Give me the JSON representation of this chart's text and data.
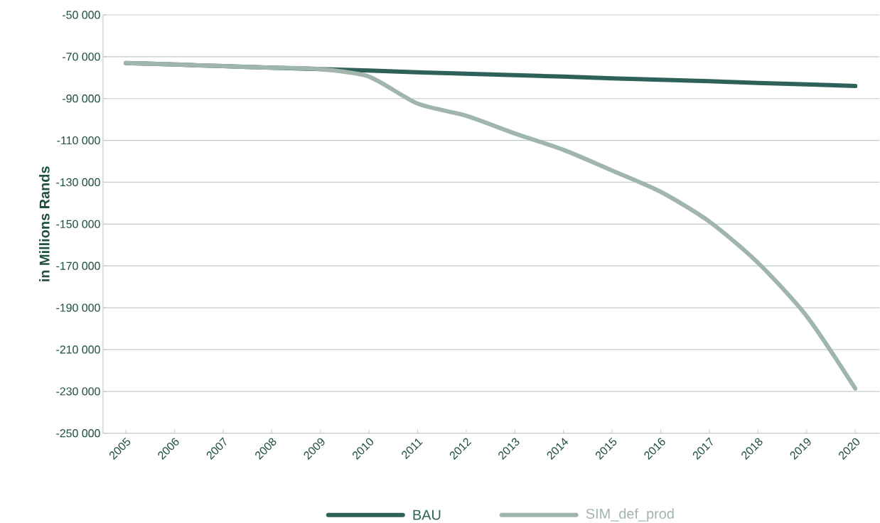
{
  "chart_data": {
    "type": "line",
    "ylabel": "in Millions Rands",
    "categories": [
      "2005",
      "2006",
      "2007",
      "2008",
      "2009",
      "2010",
      "2011",
      "2012",
      "2013",
      "2014",
      "2015",
      "2016",
      "2017",
      "2018",
      "2019",
      "2020"
    ],
    "series": [
      {
        "name": "BAU",
        "color": "#2e6259",
        "values": [
          -73000,
          -73700,
          -74500,
          -75200,
          -75900,
          -76600,
          -77400,
          -78100,
          -78800,
          -79500,
          -80300,
          -81000,
          -81700,
          -82500,
          -83200,
          -84000
        ]
      },
      {
        "name": "SIM_def_prod",
        "color": "#a0b5ae",
        "values": [
          -73000,
          -73700,
          -74500,
          -75200,
          -75900,
          -79500,
          -92400,
          -98200,
          -106700,
          -114500,
          -124400,
          -134600,
          -148800,
          -168500,
          -194000,
          -228600
        ]
      }
    ],
    "ylim": [
      -250000,
      -50000
    ],
    "yticks": [
      {
        "value": -250000,
        "label": "-250 000"
      },
      {
        "value": -230000,
        "label": "-230 000"
      },
      {
        "value": -210000,
        "label": "-210 000"
      },
      {
        "value": -190000,
        "label": "-190 000"
      },
      {
        "value": -170000,
        "label": "-170 000"
      },
      {
        "value": -150000,
        "label": "-150 000"
      },
      {
        "value": -130000,
        "label": "-130 000"
      },
      {
        "value": -110000,
        "label": "-110 000"
      },
      {
        "value": -90000,
        "label": "-90 000"
      },
      {
        "value": -70000,
        "label": "-70 000"
      },
      {
        "value": -50000,
        "label": "-50 000"
      }
    ],
    "grid": "y",
    "legend": "bottom",
    "line_style": "solid"
  }
}
